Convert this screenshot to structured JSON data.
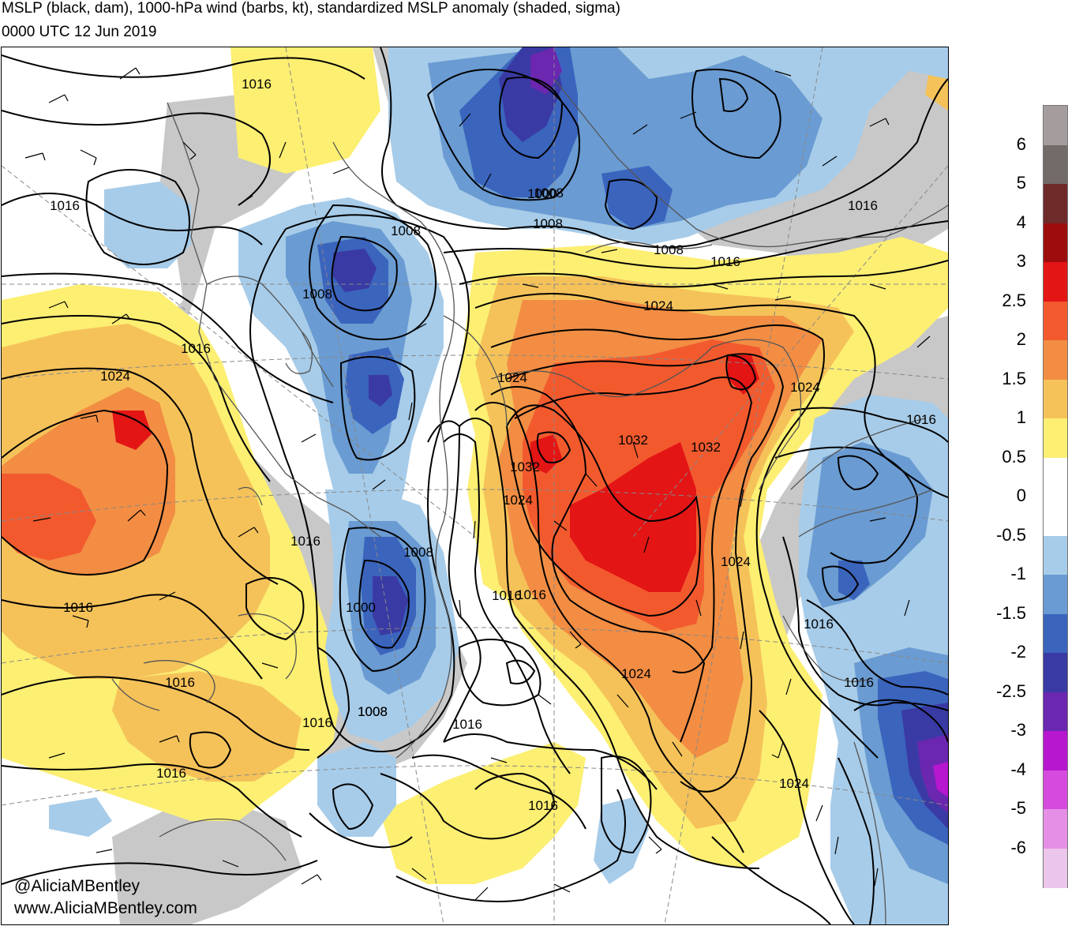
{
  "title": {
    "line1": "MSLP (black, dam), 1000-hPa wind (barbs, kt), standardized MSLP anomaly (shaded, sigma)",
    "line2": "0000 UTC 12 Jun 2019"
  },
  "credit": {
    "handle": "@AliciaMBentley",
    "url": "www.AliciaMBentley.com"
  },
  "colorbar": {
    "segments": [
      {
        "color": "#a59d9d"
      },
      {
        "color": "#736a6a"
      },
      {
        "color": "#6f2a2a"
      },
      {
        "color": "#9e0d0d"
      },
      {
        "color": "#e31515"
      },
      {
        "color": "#f25a2e"
      },
      {
        "color": "#f28d43"
      },
      {
        "color": "#f5c25a"
      },
      {
        "color": "#fcef72"
      },
      {
        "color": "#ffffff"
      },
      {
        "color": "#ffffff"
      },
      {
        "color": "#a7cce9"
      },
      {
        "color": "#6a9bd2"
      },
      {
        "color": "#3b64bd"
      },
      {
        "color": "#3a3aa4"
      },
      {
        "color": "#6b27b0"
      },
      {
        "color": "#b617cf"
      },
      {
        "color": "#d54bdd"
      },
      {
        "color": "#e58fe6"
      },
      {
        "color": "#ecc6ea"
      }
    ],
    "labels": [
      "6",
      "5",
      "4",
      "3",
      "2.5",
      "2",
      "1.5",
      "1",
      "0.5",
      "0",
      "-0.5",
      "-1",
      "-1.5",
      "-2",
      "-2.5",
      "-3",
      "-4",
      "-5",
      "-6"
    ]
  },
  "map": {
    "land_color": "#c8c8c8",
    "contour_labels": [
      "1016",
      "1016",
      "1008",
      "1008",
      "1008",
      "1000",
      "1008",
      "1008",
      "1016",
      "1016",
      "1024",
      "1016",
      "1024",
      "1024",
      "1024",
      "1032",
      "1032",
      "1032",
      "1024",
      "1016",
      "1016",
      "1016",
      "1016",
      "1008",
      "1000",
      "1008",
      "1016",
      "1016",
      "1016",
      "1016",
      "1016",
      "1016",
      "1008",
      "1016",
      "1024",
      "1024",
      "1024",
      "1016"
    ]
  }
}
